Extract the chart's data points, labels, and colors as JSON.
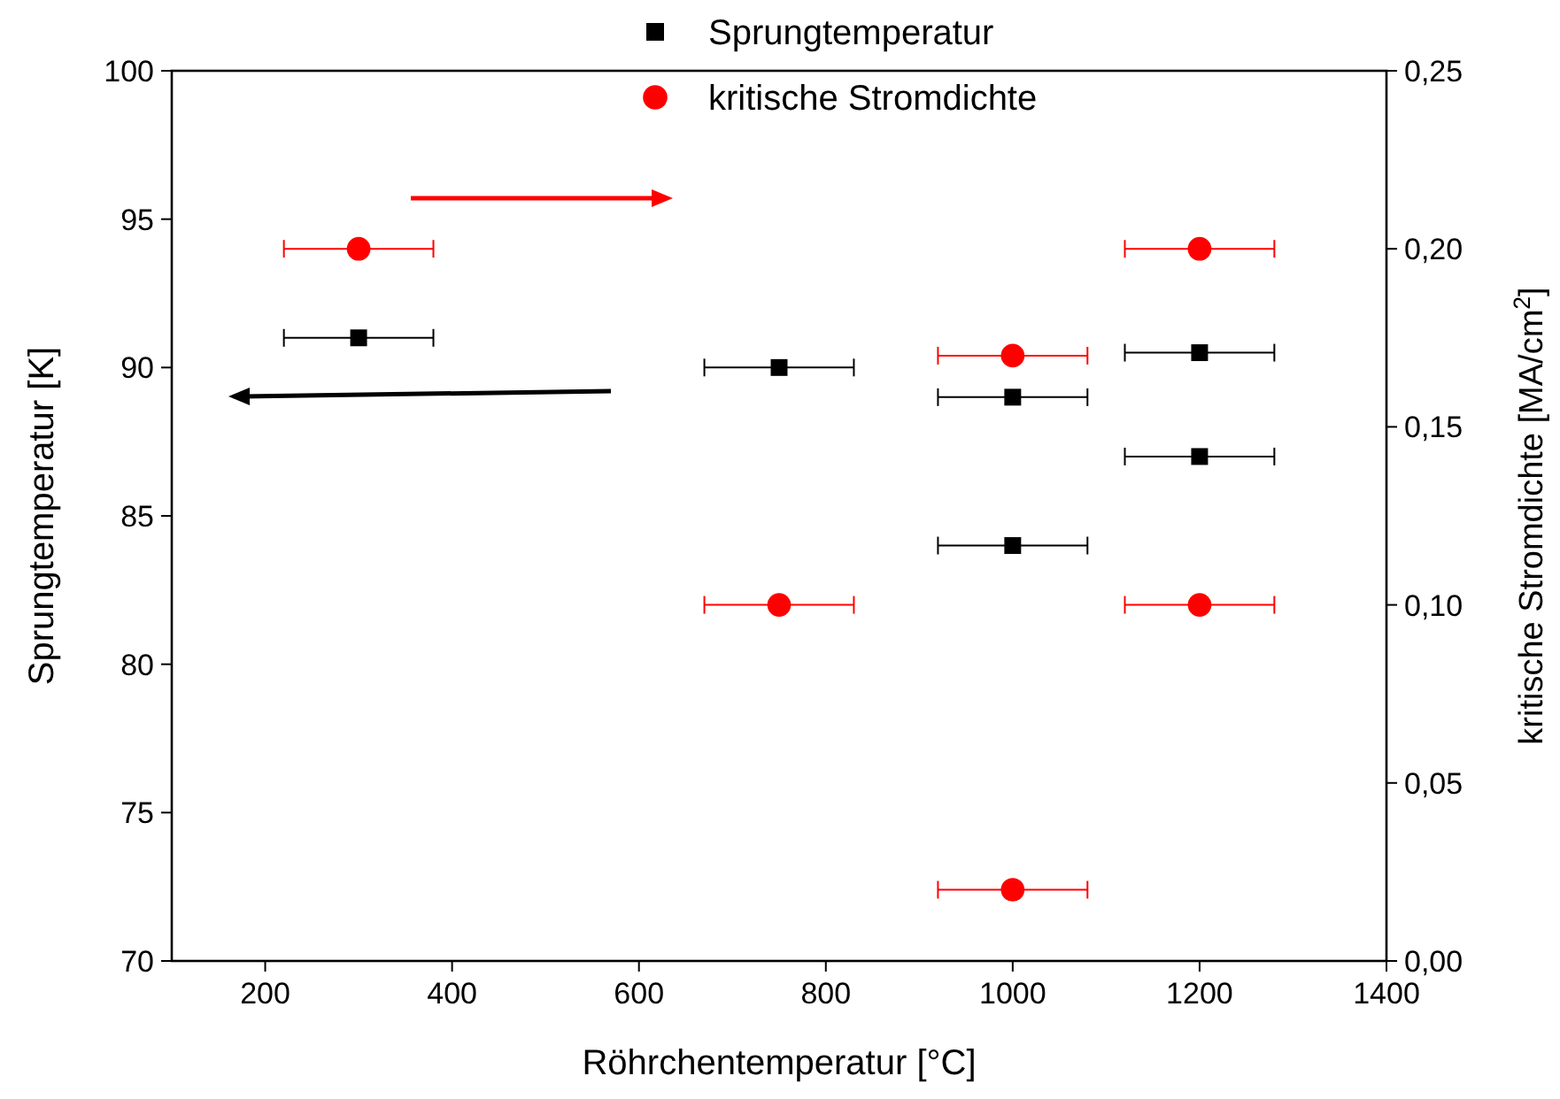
{
  "chart_data": {
    "type": "scatter",
    "xlabel": "Röhrchentemperatur [°C]",
    "ylabel": "Sprungtemperatur [K]",
    "y2label": "kritische Stromdichte [MA/cm$^{2}$]",
    "xlim": [
      100,
      1400
    ],
    "xticks": [
      200,
      400,
      600,
      800,
      1000,
      1200,
      1400
    ],
    "ylim": [
      70,
      100
    ],
    "yticks": [
      70,
      75,
      80,
      85,
      90,
      95,
      100
    ],
    "y2lim": [
      0,
      0.25
    ],
    "y2ticks": [
      {
        "value": 0,
        "label": "0,00"
      },
      {
        "value": 0.05,
        "label": "0,05"
      },
      {
        "value": 0.1,
        "label": "0,10"
      },
      {
        "value": 0.15,
        "label": "0,15"
      },
      {
        "value": 0.2,
        "label": "0,20"
      },
      {
        "value": 0.25,
        "label": "0,25"
      }
    ],
    "legend": "top",
    "grid": false,
    "series": [
      {
        "name": "Sprungtemperatur",
        "color": "#000000",
        "marker": "square",
        "x": [
          300,
          750,
          1000,
          1000,
          1200,
          1200
        ],
        "values": [
          91,
          90,
          89,
          84,
          90.5,
          87
        ],
        "xerrors": [
          80,
          80,
          80,
          80,
          80,
          80
        ]
      },
      {
        "name": "kritische Stromdichte",
        "color": "#ff0000",
        "marker": "circle",
        "axis": "y2",
        "x": [
          300,
          750,
          1000,
          1000,
          1200,
          1200
        ],
        "values": [
          0.2,
          0.1,
          0.17,
          0.02,
          0.2,
          0.1
        ],
        "xerrors": [
          80,
          80,
          80,
          80,
          80,
          80
        ]
      }
    ]
  }
}
